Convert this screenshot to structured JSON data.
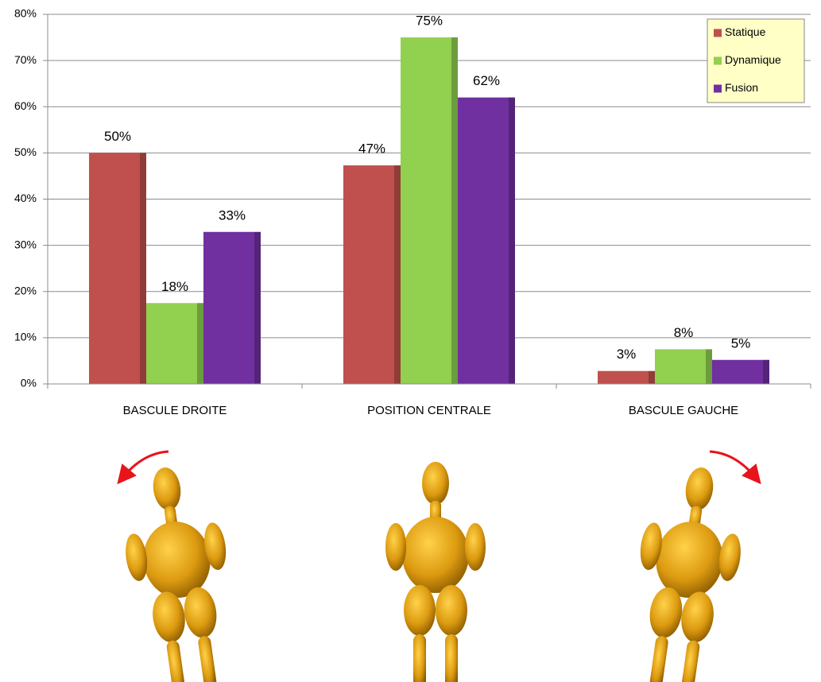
{
  "chart_data": {
    "type": "bar",
    "categories": [
      "BASCULE DROITE",
      "POSITION CENTRALE",
      "BASCULE GAUCHE"
    ],
    "series": [
      {
        "name": "Statique",
        "color": "#c0504d",
        "values": [
          50,
          47.3,
          2.8
        ],
        "value_labels": [
          "50%",
          "47%",
          "3%"
        ]
      },
      {
        "name": "Dynamique",
        "color": "#92d050",
        "values": [
          17.5,
          75,
          7.5
        ],
        "value_labels": [
          "18%",
          "75%",
          "8%"
        ]
      },
      {
        "name": "Fusion",
        "color": "#7030a0",
        "values": [
          32.9,
          62,
          5.2
        ],
        "value_labels": [
          "33%",
          "62%",
          "5%"
        ]
      }
    ],
    "ylim": [
      0,
      80
    ],
    "yticks": [
      {
        "value": 0,
        "label": "0%"
      },
      {
        "value": 10,
        "label": "10%"
      },
      {
        "value": 20,
        "label": "20%"
      },
      {
        "value": 30,
        "label": "30%"
      },
      {
        "value": 40,
        "label": "40%"
      },
      {
        "value": 50,
        "label": "50%"
      },
      {
        "value": 60,
        "label": "60%"
      },
      {
        "value": 70,
        "label": "70%"
      },
      {
        "value": 80,
        "label": "80%"
      }
    ],
    "grid": true,
    "legend": "top-right"
  }
}
